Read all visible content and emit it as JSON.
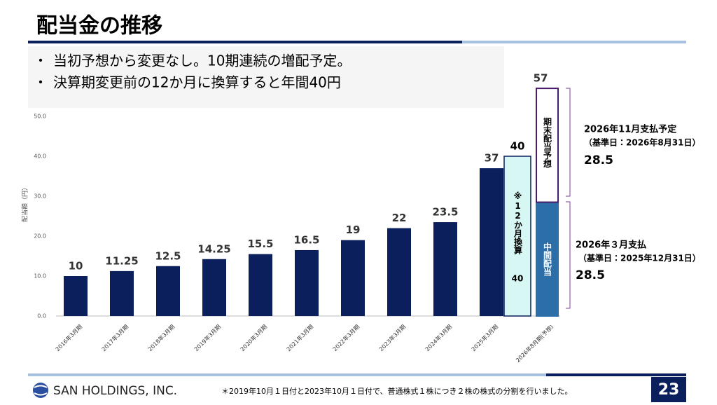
{
  "header": {
    "title": "配当金の推移",
    "bullets": [
      "当初予想から変更なし。10期連続の増配予定。",
      "決算期変更前の12か月に換算すると年間40円"
    ]
  },
  "chart_data": {
    "type": "bar",
    "y_label": "配当額（円）",
    "categories": [
      "2016年3月期",
      "2017年3月期",
      "2018年3月期",
      "2019年3月期",
      "2020年3月期",
      "2021年3月期",
      "2022年3月期",
      "2023年3月期",
      "2024年3月期",
      "2025年3月期",
      "2026年8月期(予想)"
    ],
    "values": [
      10,
      11.25,
      12.5,
      14.25,
      15.5,
      16.5,
      19,
      22,
      23.5,
      37,
      null
    ],
    "color": "#0b1f5c",
    "stack": [
      {
        "name": "中間配当",
        "value": 28.5,
        "color": "#2b6ea8"
      },
      {
        "name": "期末配当予想",
        "value": 28.5,
        "color": "#ffffff"
      }
    ],
    "total": 57,
    "converted": {
      "name": "※12か月換算",
      "value": 40,
      "color": "#d6f7f4"
    },
    "ylim": [
      0,
      60
    ],
    "yticks": [
      {
        "value": 0,
        "label": "0.0"
      },
      {
        "value": 10,
        "label": "10.0"
      },
      {
        "value": 20,
        "label": "20.0"
      },
      {
        "value": 30,
        "label": "30.0"
      },
      {
        "value": 40,
        "label": "40.0"
      },
      {
        "value": 50,
        "label": "50.0"
      }
    ],
    "annotations": [
      {
        "title": "2026年11月支払予定",
        "subtitle": "（基準日：2026年8月31日）",
        "value": 28.5
      },
      {
        "title": "2026年３月支払",
        "subtitle": "（基準日：2025年12月31日）",
        "value": 28.5
      }
    ]
  },
  "footer": {
    "company": "SAN HOLDINGS, INC.",
    "note": "＊2019年10月１日付と2023年10月１日付で、普通株式１株につき２株の株式の分割を行いました。",
    "page": "23"
  }
}
